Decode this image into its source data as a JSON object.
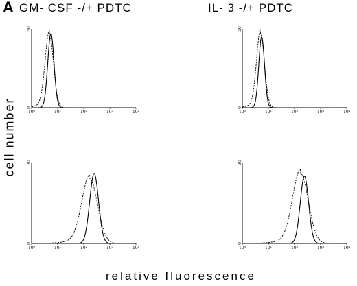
{
  "figure": {
    "panel_label": "A",
    "ylabel": "cell number",
    "xlabel": "relative fluorescence",
    "titles": [
      "GM- CSF -/+ PDTC",
      "IL- 3 -/+ PDTC"
    ]
  },
  "chart_data": [
    {
      "type": "line",
      "scale": "log",
      "column_title": "GM- CSF -/+ PDTC",
      "xlim": [
        1,
        10000
      ],
      "ylim": [
        0,
        50
      ],
      "x_ticks": [
        "10⁰",
        "10¹",
        "10²",
        "10³",
        "10⁴"
      ],
      "y_ticks": [
        "0",
        "50"
      ],
      "series": [
        {
          "style": "solid",
          "peak_x": 5.5,
          "peak_y": 47,
          "sigma_log": 0.12
        },
        {
          "style": "dashed",
          "peak_x": 4.8,
          "peak_y": 46,
          "sigma_log": 0.16
        }
      ]
    },
    {
      "type": "line",
      "scale": "log",
      "column_title": "IL- 3 -/+ PDTC",
      "xlim": [
        1,
        10000
      ],
      "ylim": [
        0,
        50
      ],
      "x_ticks": [
        "10⁰",
        "10¹",
        "10²",
        "10³",
        "10⁴"
      ],
      "y_ticks": [
        "0",
        "50"
      ],
      "series": [
        {
          "style": "solid",
          "peak_x": 5.5,
          "peak_y": 45,
          "sigma_log": 0.11
        },
        {
          "style": "dashed",
          "peak_x": 5.0,
          "peak_y": 47,
          "sigma_log": 0.15
        }
      ]
    },
    {
      "type": "line",
      "scale": "log",
      "column_title": "GM- CSF -/+ PDTC",
      "xlim": [
        1,
        10000
      ],
      "ylim": [
        0,
        30
      ],
      "x_ticks": [
        "10⁰",
        "10¹",
        "10²",
        "10³",
        "10⁴"
      ],
      "y_ticks": [
        "0",
        "30"
      ],
      "series": [
        {
          "style": "solid",
          "peak_x": 250,
          "peak_y": 26,
          "sigma_log": 0.17
        },
        {
          "style": "dashed",
          "peak_x": 170,
          "peak_y": 24,
          "sigma_log": 0.3
        }
      ]
    },
    {
      "type": "line",
      "scale": "log",
      "column_title": "IL- 3 -/+ PDTC",
      "xlim": [
        1,
        10000
      ],
      "ylim": [
        0,
        30
      ],
      "x_ticks": [
        "10⁰",
        "10¹",
        "10²",
        "10³",
        "10⁴"
      ],
      "y_ticks": [
        "0",
        "30"
      ],
      "series": [
        {
          "style": "solid",
          "peak_x": 240,
          "peak_y": 25,
          "sigma_log": 0.16
        },
        {
          "style": "dashed",
          "peak_x": 170,
          "peak_y": 26,
          "sigma_log": 0.3
        }
      ]
    }
  ]
}
